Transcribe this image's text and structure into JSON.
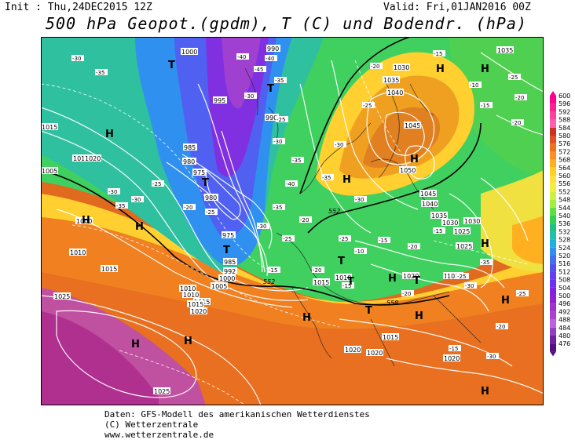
{
  "header": {
    "init": "Init : Thu,24DEC2015 12Z",
    "valid": "Valid: Fri,01JAN2016 00Z",
    "title": "500 hPa Geopot.(gpdm), T (C) und Bodendr. (hPa)"
  },
  "footer": {
    "line1": "Daten: GFS-Modell des amerikanischen Wetterdienstes",
    "line2": "(C) Wetterzentrale",
    "line3": "www.wetterzentrale.de"
  },
  "legend": {
    "values": [
      "600",
      "596",
      "592",
      "588",
      "584",
      "580",
      "576",
      "572",
      "568",
      "564",
      "560",
      "556",
      "552",
      "548",
      "544",
      "540",
      "536",
      "532",
      "528",
      "524",
      "520",
      "516",
      "512",
      "508",
      "504",
      "500",
      "496",
      "492",
      "488",
      "484",
      "480",
      "476"
    ],
    "colors": [
      "#ff0090",
      "#ff2090",
      "#ff40a0",
      "#ff60b0",
      "#d03020",
      "#e05020",
      "#f07020",
      "#ff9020",
      "#ffb020",
      "#ffd020",
      "#ffe040",
      "#f0f040",
      "#d0f040",
      "#a0f040",
      "#60e040",
      "#30d050",
      "#20c080",
      "#20c0b0",
      "#20b0e0",
      "#3090f0",
      "#4070f0",
      "#5050f0",
      "#6040f0",
      "#7030f0",
      "#8020e0",
      "#9020d0",
      "#a030d0",
      "#b040d0",
      "#c060e0",
      "#9040c0",
      "#7020a0",
      "#501080"
    ]
  },
  "map": {
    "pressure_labels": [
      "1000",
      "990",
      "995",
      "990",
      "985",
      "980",
      "975",
      "980",
      "975",
      "985",
      "992",
      "1000",
      "1005",
      "1010",
      "1015",
      "1020",
      "1010",
      "1015",
      "1020",
      "1005",
      "1010",
      "1015",
      "1000",
      "1010",
      "1015",
      "1025",
      "1025",
      "1020",
      "1015",
      "1035",
      "1030",
      "1040",
      "1045",
      "1050",
      "1045",
      "1040",
      "1035",
      "1030",
      "1025",
      "1015",
      "1020",
      "1010",
      "1015",
      "1020",
      "1035",
      "1030",
      "1025",
      "1015",
      "1020"
    ],
    "temp_labels": [
      "-30",
      "-35",
      "-40",
      "-45",
      "-40",
      "-35",
      "-30",
      "-25",
      "-30",
      "-35",
      "-40",
      "-35",
      "-30",
      "-25",
      "-20",
      "-25",
      "-30",
      "-35",
      "-30",
      "-25",
      "-20",
      "-15",
      "-20",
      "-25",
      "-30",
      "-35",
      "-30",
      "-25",
      "-20",
      "-15",
      "-10",
      "-15",
      "-20",
      "-25",
      "-20",
      "-15",
      "-20",
      "-15",
      "-10",
      "-15",
      "-20",
      "-25",
      "-30",
      "-35",
      "-30",
      "-25",
      "-20",
      "-15"
    ],
    "highs": [
      "H",
      "H",
      "H",
      "H",
      "H",
      "H",
      "H",
      "H",
      "H",
      "H",
      "H",
      "H",
      "H",
      "H",
      "H"
    ],
    "lows": [
      "T",
      "T",
      "T",
      "T",
      "T",
      "T",
      "T",
      "T"
    ],
    "line_552": "552",
    "line_558": "558"
  }
}
